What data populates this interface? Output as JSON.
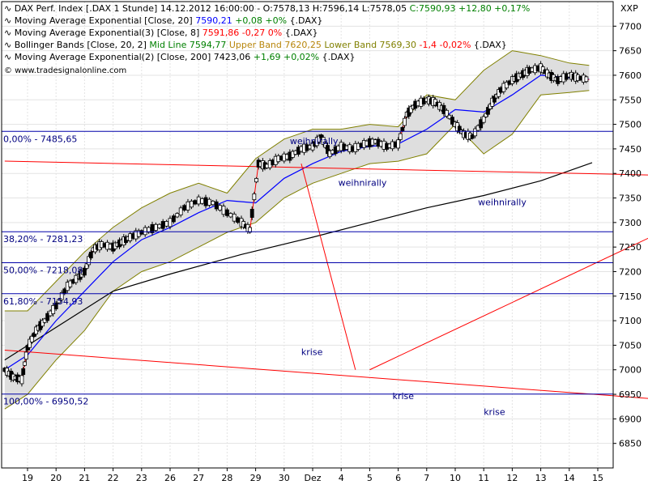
{
  "chart_data": {
    "type": "candlestick",
    "instrument_header": {
      "name": "DAX Perf. Index [.DAX  1 Stunde]",
      "ohlc": "14.12.2012 16:00:00 - O:7578,13 H:7596,14 L:7578,05",
      "close": "C:7590,93 +12,80 +0,17%"
    },
    "legend": [
      {
        "label": "Moving Average Exponential [Close, 20]",
        "value": "7590,21",
        "change": "+0,08 +0%",
        "suffix": "{.DAX}",
        "color": "#0000ff",
        "change_color": "#008000"
      },
      {
        "label": "Moving Average Exponential(3) [Close, 8]",
        "value": "7591,86",
        "change": "-0,27 0%",
        "suffix": "{.DAX}",
        "color": "#ff0000",
        "change_color": "#ff0000"
      },
      {
        "label": "Bollinger Bands [Close, 20, 2]",
        "parts": [
          "Mid Line 7594,77",
          "Upper Band 7620,25",
          "Lower Band 7569,30",
          "-1,4 -0,02%",
          "{.DAX}"
        ],
        "part_colors": [
          "#008000",
          "#b8860b",
          "#808000",
          "#ff0000",
          "#000000"
        ]
      },
      {
        "label": "Moving Average Exponential(2) [Close, 200]",
        "value": "7423,06",
        "change": "+1,69 +0,02%",
        "suffix": "{.DAX}",
        "color": "#000000",
        "change_color": "#008000"
      }
    ],
    "source": "© www.tradesignalonline.com",
    "corner_label": "XXP",
    "x_ticks": [
      "19",
      "20",
      "21",
      "22",
      "23",
      "26",
      "27",
      "28",
      "29",
      "30",
      "Dez",
      "4",
      "5",
      "6",
      "7",
      "10",
      "11",
      "12",
      "13",
      "14",
      "15"
    ],
    "y_ticks": [
      6850,
      6900,
      6950,
      7000,
      7050,
      7100,
      7150,
      7200,
      7250,
      7300,
      7350,
      7400,
      7450,
      7500,
      7550,
      7600,
      7650,
      7700
    ],
    "ylim": [
      6800,
      7750
    ],
    "fib_levels": [
      {
        "label": "0,00% - 7485,65",
        "value": 7485.65
      },
      {
        "label": "38,20% - 7281,23",
        "value": 7281.23
      },
      {
        "label": "50,00% - 7218,08",
        "value": 7218.08
      },
      {
        "label": "61,80% - 7154,93",
        "value": 7154.93
      },
      {
        "label": "100,00% - 6950,52",
        "value": 6950.52
      }
    ],
    "annotations": [
      {
        "text": "weihnirally",
        "x": 9.2,
        "y": 7460
      },
      {
        "text": "weihnirally",
        "x": 10.9,
        "y": 7375
      },
      {
        "text": "weihnirally",
        "x": 15.8,
        "y": 7335
      },
      {
        "text": "krise",
        "x": 9.6,
        "y": 7030
      },
      {
        "text": "krise",
        "x": 12.8,
        "y": 6940
      },
      {
        "text": "krise",
        "x": 16.0,
        "y": 6908
      }
    ],
    "trendlines": [
      {
        "name": "red-upper-trendline",
        "x1": -0.8,
        "y1": 7425,
        "x2": 23.3,
        "y2": 7395
      },
      {
        "name": "red-lower-trendline",
        "x1": -0.8,
        "y1": 7040,
        "x2": 23.3,
        "y2": 6935
      },
      {
        "name": "red-drop-line",
        "x1": 9.6,
        "y1": 7420,
        "x2": 11.5,
        "y2": 7000
      },
      {
        "name": "red-recovery-line",
        "x1": 12.0,
        "y1": 7000,
        "x2": 23.3,
        "y2": 7310
      }
    ],
    "ema200": [
      [
        -0.8,
        7020
      ],
      [
        3,
        7160
      ],
      [
        5,
        7195
      ],
      [
        7.5,
        7235
      ],
      [
        10,
        7270
      ],
      [
        12,
        7300
      ],
      [
        14,
        7330
      ],
      [
        16,
        7355
      ],
      [
        18,
        7385
      ],
      [
        19.8,
        7422
      ]
    ],
    "ema20_bb_mid": [
      [
        -0.8,
        7000
      ],
      [
        0,
        7030
      ],
      [
        1,
        7100
      ],
      [
        2,
        7160
      ],
      [
        3,
        7220
      ],
      [
        4,
        7265
      ],
      [
        5,
        7290
      ],
      [
        6,
        7320
      ],
      [
        7,
        7345
      ],
      [
        8,
        7340
      ],
      [
        9,
        7390
      ],
      [
        10,
        7420
      ],
      [
        11,
        7445
      ],
      [
        12,
        7455
      ],
      [
        13,
        7460
      ],
      [
        14,
        7490
      ],
      [
        15,
        7530
      ],
      [
        16,
        7525
      ],
      [
        17,
        7560
      ],
      [
        18,
        7600
      ],
      [
        19,
        7595
      ],
      [
        19.7,
        7592
      ]
    ],
    "bb_upper": [
      [
        -0.8,
        7120
      ],
      [
        0,
        7120
      ],
      [
        1,
        7180
      ],
      [
        2,
        7240
      ],
      [
        3,
        7290
      ],
      [
        4,
        7330
      ],
      [
        5,
        7360
      ],
      [
        6,
        7380
      ],
      [
        7,
        7360
      ],
      [
        8,
        7430
      ],
      [
        9,
        7470
      ],
      [
        10,
        7490
      ],
      [
        11,
        7490
      ],
      [
        12,
        7500
      ],
      [
        13,
        7495
      ],
      [
        14,
        7560
      ],
      [
        15,
        7550
      ],
      [
        16,
        7610
      ],
      [
        17,
        7650
      ],
      [
        18,
        7640
      ],
      [
        19,
        7625
      ],
      [
        19.7,
        7620
      ]
    ],
    "bb_lower": [
      [
        -0.8,
        6920
      ],
      [
        0,
        6950
      ],
      [
        1,
        7020
      ],
      [
        2,
        7080
      ],
      [
        3,
        7160
      ],
      [
        4,
        7200
      ],
      [
        5,
        7220
      ],
      [
        6,
        7250
      ],
      [
        7,
        7280
      ],
      [
        8,
        7300
      ],
      [
        9,
        7350
      ],
      [
        10,
        7380
      ],
      [
        11,
        7400
      ],
      [
        12,
        7420
      ],
      [
        13,
        7425
      ],
      [
        14,
        7440
      ],
      [
        15,
        7500
      ],
      [
        16,
        7440
      ],
      [
        17,
        7480
      ],
      [
        18,
        7560
      ],
      [
        19,
        7565
      ],
      [
        19.7,
        7569
      ]
    ],
    "price_path": [
      [
        -0.8,
        7000
      ],
      [
        -0.5,
        6985
      ],
      [
        -0.2,
        6980
      ],
      [
        0,
        7045
      ],
      [
        0.3,
        7080
      ],
      [
        0.6,
        7100
      ],
      [
        1,
        7130
      ],
      [
        1.4,
        7170
      ],
      [
        1.8,
        7190
      ],
      [
        2,
        7200
      ],
      [
        2.3,
        7245
      ],
      [
        2.6,
        7255
      ],
      [
        3,
        7250
      ],
      [
        3.3,
        7260
      ],
      [
        3.6,
        7270
      ],
      [
        4,
        7280
      ],
      [
        4.5,
        7290
      ],
      [
        5,
        7300
      ],
      [
        5.5,
        7330
      ],
      [
        6,
        7345
      ],
      [
        6.5,
        7340
      ],
      [
        7,
        7320
      ],
      [
        7.5,
        7300
      ],
      [
        7.8,
        7285
      ],
      [
        8.1,
        7420
      ],
      [
        8.4,
        7415
      ],
      [
        8.8,
        7430
      ],
      [
        9.2,
        7435
      ],
      [
        9.6,
        7450
      ],
      [
        10,
        7455
      ],
      [
        10.3,
        7475
      ],
      [
        10.6,
        7440
      ],
      [
        11,
        7455
      ],
      [
        11.4,
        7450
      ],
      [
        11.8,
        7460
      ],
      [
        12.2,
        7465
      ],
      [
        12.6,
        7455
      ],
      [
        13,
        7460
      ],
      [
        13.3,
        7520
      ],
      [
        13.6,
        7540
      ],
      [
        14,
        7550
      ],
      [
        14.3,
        7545
      ],
      [
        14.6,
        7530
      ],
      [
        15,
        7500
      ],
      [
        15.3,
        7480
      ],
      [
        15.6,
        7475
      ],
      [
        16,
        7510
      ],
      [
        16.3,
        7545
      ],
      [
        16.6,
        7570
      ],
      [
        17,
        7590
      ],
      [
        17.3,
        7600
      ],
      [
        17.6,
        7610
      ],
      [
        18,
        7615
      ],
      [
        18.3,
        7600
      ],
      [
        18.6,
        7590
      ],
      [
        19,
        7600
      ],
      [
        19.3,
        7595
      ],
      [
        19.7,
        7591
      ]
    ]
  }
}
